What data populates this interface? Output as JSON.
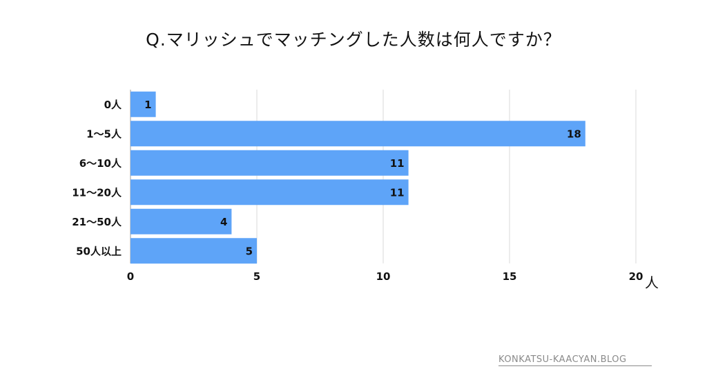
{
  "chart_data": {
    "type": "bar",
    "orientation": "horizontal",
    "title": "Q.マリッシュでマッチングした人数は何人ですか？",
    "categories": [
      "0人",
      "1～5人",
      "6～10人",
      "11～20人",
      "21～50人",
      "50人以上"
    ],
    "values": [
      1,
      18,
      11,
      11,
      4,
      5
    ],
    "data_labels": [
      "1",
      "18",
      "11",
      "11",
      "4",
      "5"
    ],
    "xticks": [
      "0",
      "5",
      "10",
      "15",
      "20"
    ],
    "xlim": [
      0,
      20
    ],
    "xlabel": "人",
    "ylabel": "",
    "grid": true,
    "bar_color": "#5ea4f8"
  },
  "footer": {
    "watermark": "KONKATSU-KAACYAN.BLOG"
  }
}
